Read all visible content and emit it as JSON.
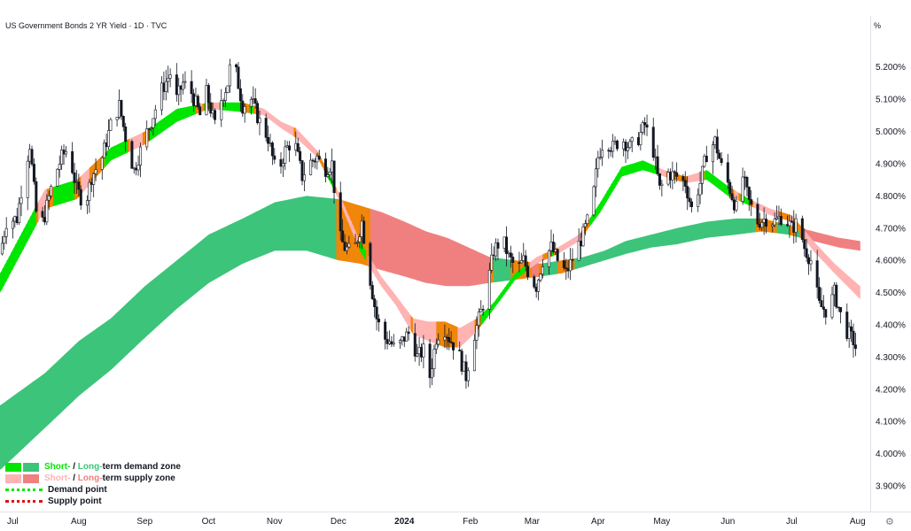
{
  "header": {
    "title": "US Government Bonds 2 YR Yield · 1D · TVC",
    "unit": "%"
  },
  "legend": {
    "demand_short": "Short-",
    "demand_sep": " / ",
    "demand_long": "Long-",
    "demand_rest": "term demand zone",
    "supply_short": "Short-",
    "supply_sep": " / ",
    "supply_long": "Long-",
    "supply_rest": "term supply zone",
    "demand_point": "Demand point",
    "supply_point": "Supply point"
  },
  "colors": {
    "short_demand": "#00e600",
    "long_demand": "#3cc47a",
    "short_supply": "#ffb3b3",
    "long_supply": "#f08080",
    "overlap": "#f0860a",
    "candle": "#131722"
  },
  "chart_data": {
    "type": "candlestick",
    "title": "US Government Bonds 2 YR Yield · 1D · TVC",
    "y_unit": "%",
    "yticks": [
      "5.200%",
      "5.100%",
      "5.000%",
      "4.900%",
      "4.800%",
      "4.700%",
      "4.600%",
      "4.500%",
      "4.400%",
      "4.300%",
      "4.200%",
      "4.100%",
      "4.000%",
      "3.900%"
    ],
    "ytick_values": [
      5.2,
      5.1,
      5.0,
      4.9,
      4.8,
      4.7,
      4.6,
      4.5,
      4.4,
      4.3,
      4.2,
      4.1,
      4.0,
      3.9
    ],
    "ylim": [
      3.87,
      5.32
    ],
    "xticks": [
      "Jul",
      "Aug",
      "Sep",
      "Oct",
      "Nov",
      "Dec",
      "2024",
      "Feb",
      "Mar",
      "Apr",
      "May",
      "Jun",
      "Jul",
      "Aug"
    ],
    "xtick_days": [
      0,
      31,
      62,
      92,
      123,
      153,
      184,
      215,
      244,
      275,
      305,
      336,
      366,
      397
    ],
    "xlim_days": [
      -6,
      400
    ],
    "price_path": [
      [
        -6,
        4.62
      ],
      [
        -3,
        4.72
      ],
      [
        2,
        4.73
      ],
      [
        5,
        4.86
      ],
      [
        8,
        4.96
      ],
      [
        12,
        4.68
      ],
      [
        15,
        4.74
      ],
      [
        19,
        4.85
      ],
      [
        23,
        4.92
      ],
      [
        26,
        4.95
      ],
      [
        30,
        4.82
      ],
      [
        34,
        4.77
      ],
      [
        37,
        4.86
      ],
      [
        42,
        4.92
      ],
      [
        46,
        5.02
      ],
      [
        50,
        5.08
      ],
      [
        54,
        4.95
      ],
      [
        57,
        4.88
      ],
      [
        62,
        4.98
      ],
      [
        66,
        5.05
      ],
      [
        70,
        5.13
      ],
      [
        74,
        5.18
      ],
      [
        77,
        5.1
      ],
      [
        80,
        5.15
      ],
      [
        84,
        5.12
      ],
      [
        88,
        5.05
      ],
      [
        91,
        5.12
      ],
      [
        95,
        5.02
      ],
      [
        98,
        5.1
      ],
      [
        101,
        5.15
      ],
      [
        103,
        5.24
      ],
      [
        105,
        5.18
      ],
      [
        108,
        5.08
      ],
      [
        112,
        5.1
      ],
      [
        116,
        5.03
      ],
      [
        120,
        4.98
      ],
      [
        124,
        4.86
      ],
      [
        128,
        4.94
      ],
      [
        132,
        4.98
      ],
      [
        136,
        4.86
      ],
      [
        139,
        4.9
      ],
      [
        143,
        4.92
      ],
      [
        146,
        4.88
      ],
      [
        150,
        4.9
      ],
      [
        153,
        4.68
      ],
      [
        156,
        4.64
      ],
      [
        160,
        4.62
      ],
      [
        164,
        4.72
      ],
      [
        167,
        4.58
      ],
      [
        171,
        4.42
      ],
      [
        174,
        4.36
      ],
      [
        177,
        4.35
      ],
      [
        180,
        4.32
      ],
      [
        184,
        4.36
      ],
      [
        187,
        4.38
      ],
      [
        190,
        4.3
      ],
      [
        193,
        4.32
      ],
      [
        196,
        4.24
      ],
      [
        199,
        4.36
      ],
      [
        202,
        4.4
      ],
      [
        205,
        4.36
      ],
      [
        209,
        4.32
      ],
      [
        213,
        4.24
      ],
      [
        216,
        4.35
      ],
      [
        220,
        4.44
      ],
      [
        223,
        4.52
      ],
      [
        226,
        4.63
      ],
      [
        230,
        4.67
      ],
      [
        233,
        4.61
      ],
      [
        237,
        4.57
      ],
      [
        240,
        4.6
      ],
      [
        243,
        4.55
      ],
      [
        246,
        4.52
      ],
      [
        249,
        4.6
      ],
      [
        253,
        4.64
      ],
      [
        256,
        4.6
      ],
      [
        260,
        4.56
      ],
      [
        264,
        4.62
      ],
      [
        268,
        4.68
      ],
      [
        272,
        4.76
      ],
      [
        275,
        4.92
      ],
      [
        278,
        4.98
      ],
      [
        282,
        4.95
      ],
      [
        286,
        4.98
      ],
      [
        290,
        4.95
      ],
      [
        294,
        4.98
      ],
      [
        297,
        5.02
      ],
      [
        301,
        4.94
      ],
      [
        304,
        4.82
      ],
      [
        308,
        4.87
      ],
      [
        312,
        4.86
      ],
      [
        316,
        4.84
      ],
      [
        319,
        4.76
      ],
      [
        323,
        4.84
      ],
      [
        326,
        4.93
      ],
      [
        330,
        4.97
      ],
      [
        333,
        4.89
      ],
      [
        336,
        4.84
      ],
      [
        340,
        4.76
      ],
      [
        343,
        4.86
      ],
      [
        346,
        4.78
      ],
      [
        350,
        4.72
      ],
      [
        354,
        4.73
      ],
      [
        358,
        4.72
      ],
      [
        362,
        4.74
      ],
      [
        366,
        4.7
      ],
      [
        369,
        4.72
      ],
      [
        372,
        4.64
      ],
      [
        375,
        4.6
      ],
      [
        379,
        4.46
      ],
      [
        383,
        4.44
      ],
      [
        386,
        4.5
      ],
      [
        389,
        4.43
      ],
      [
        392,
        4.38
      ],
      [
        395,
        4.35
      ],
      [
        398,
        4.29
      ]
    ],
    "short_term_band": [
      [
        -6,
        4.5,
        4.56
      ],
      [
        15,
        4.76,
        4.82
      ],
      [
        30,
        4.79,
        4.85
      ],
      [
        46,
        4.91,
        4.95
      ],
      [
        62,
        4.96,
        5.0
      ],
      [
        77,
        5.03,
        5.07
      ],
      [
        92,
        5.07,
        5.09
      ],
      [
        108,
        5.06,
        5.09
      ],
      [
        118,
        5.05,
        5.07
      ],
      [
        126,
        5.01,
        5.03
      ],
      [
        133,
        4.98,
        5.01
      ],
      [
        143,
        4.92,
        4.94
      ],
      [
        153,
        4.79,
        4.81
      ],
      [
        163,
        4.63,
        4.66
      ],
      [
        173,
        4.52,
        4.55
      ],
      [
        180,
        4.46,
        4.49
      ],
      [
        188,
        4.37,
        4.42
      ],
      [
        195,
        4.35,
        4.41
      ],
      [
        203,
        4.33,
        4.41
      ],
      [
        210,
        4.33,
        4.39
      ],
      [
        218,
        4.38,
        4.42
      ],
      [
        226,
        4.45,
        4.47
      ],
      [
        236,
        4.54,
        4.56
      ],
      [
        246,
        4.59,
        4.61
      ],
      [
        256,
        4.62,
        4.64
      ],
      [
        266,
        4.66,
        4.68
      ],
      [
        276,
        4.75,
        4.78
      ],
      [
        286,
        4.86,
        4.89
      ],
      [
        296,
        4.88,
        4.91
      ],
      [
        306,
        4.86,
        4.88
      ],
      [
        316,
        4.84,
        4.86
      ],
      [
        326,
        4.85,
        4.88
      ],
      [
        336,
        4.8,
        4.83
      ],
      [
        346,
        4.77,
        4.79
      ],
      [
        356,
        4.74,
        4.76
      ],
      [
        366,
        4.72,
        4.74
      ],
      [
        376,
        4.63,
        4.66
      ],
      [
        386,
        4.56,
        4.59
      ],
      [
        398,
        4.48,
        4.52
      ]
    ],
    "long_term_band": [
      [
        -6,
        3.95,
        4.15
      ],
      [
        15,
        4.08,
        4.25
      ],
      [
        31,
        4.18,
        4.35
      ],
      [
        46,
        4.26,
        4.42
      ],
      [
        62,
        4.36,
        4.52
      ],
      [
        77,
        4.45,
        4.6
      ],
      [
        92,
        4.53,
        4.68
      ],
      [
        108,
        4.59,
        4.73
      ],
      [
        123,
        4.63,
        4.78
      ],
      [
        138,
        4.63,
        4.8
      ],
      [
        153,
        4.6,
        4.79
      ],
      [
        163,
        4.59,
        4.77
      ],
      [
        173,
        4.57,
        4.75
      ],
      [
        184,
        4.55,
        4.72
      ],
      [
        194,
        4.53,
        4.69
      ],
      [
        204,
        4.52,
        4.67
      ],
      [
        214,
        4.52,
        4.64
      ],
      [
        224,
        4.53,
        4.61
      ],
      [
        236,
        4.54,
        4.6
      ],
      [
        248,
        4.55,
        4.59
      ],
      [
        258,
        4.56,
        4.6
      ],
      [
        268,
        4.58,
        4.61
      ],
      [
        278,
        4.6,
        4.63
      ],
      [
        288,
        4.62,
        4.66
      ],
      [
        300,
        4.64,
        4.68
      ],
      [
        312,
        4.65,
        4.7
      ],
      [
        326,
        4.67,
        4.72
      ],
      [
        340,
        4.68,
        4.73
      ],
      [
        352,
        4.69,
        4.73
      ],
      [
        364,
        4.68,
        4.71
      ],
      [
        376,
        4.66,
        4.69
      ],
      [
        388,
        4.64,
        4.67
      ],
      [
        398,
        4.63,
        4.66
      ]
    ]
  }
}
